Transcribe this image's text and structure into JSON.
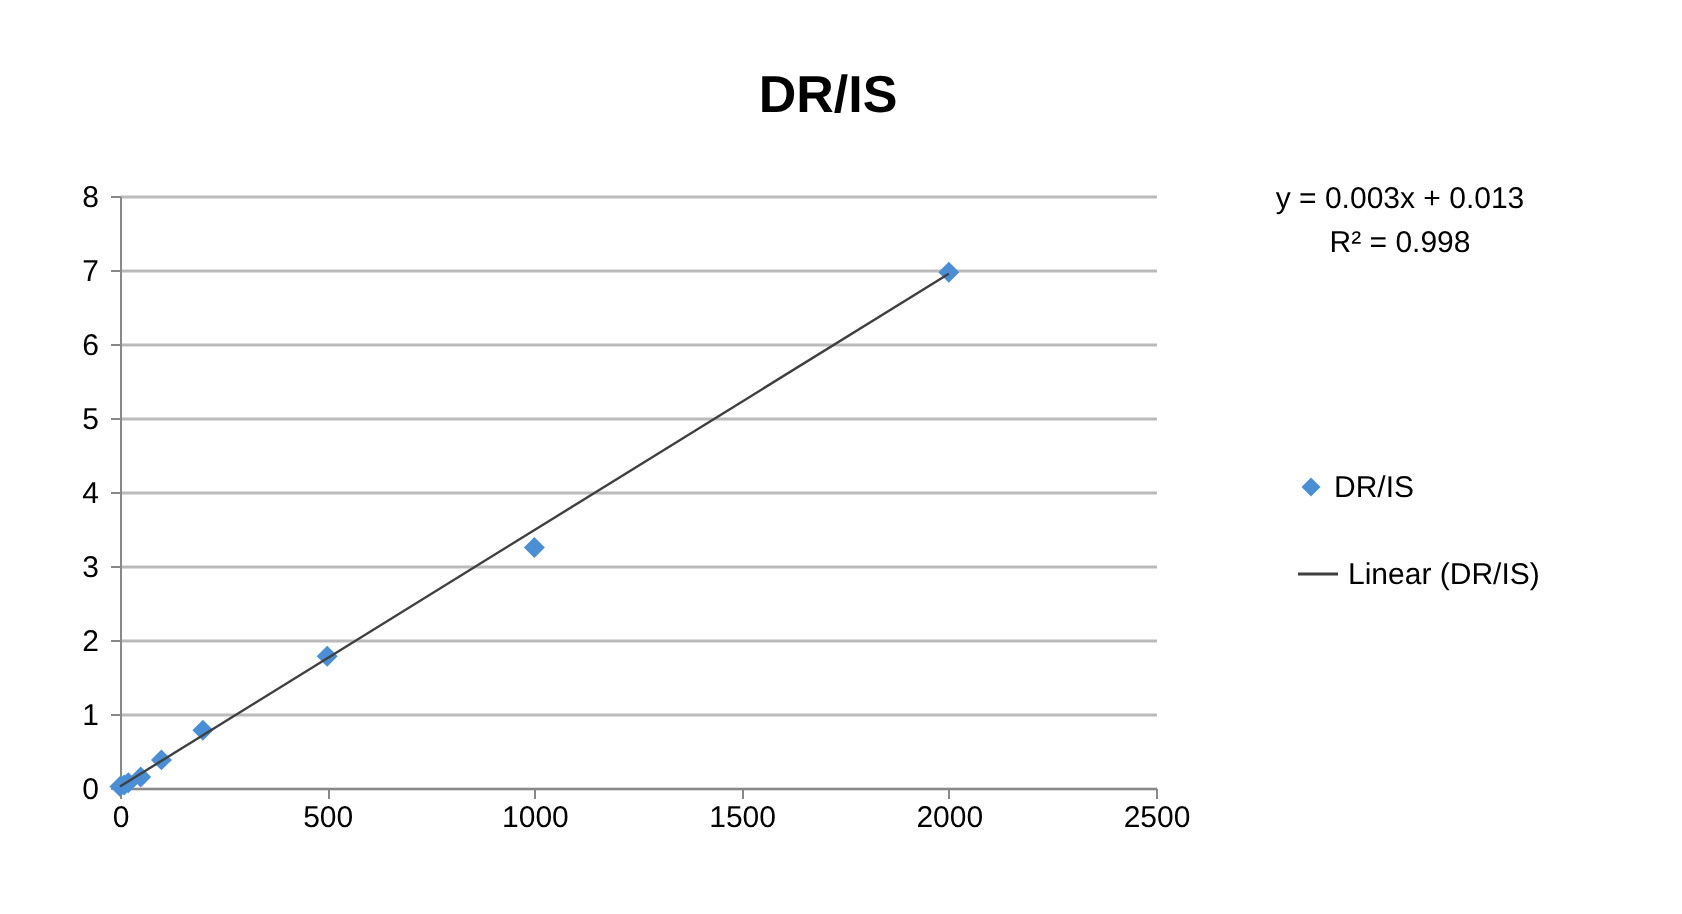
{
  "chart_data": {
    "type": "scatter",
    "title": "DR/IS",
    "x": [
      0,
      10,
      20,
      50,
      100,
      200,
      500,
      1000,
      2000
    ],
    "series": [
      {
        "name": "DR/IS",
        "color": "#4a8fd6",
        "marker": "diamond",
        "values": [
          0.02,
          0.04,
          0.07,
          0.15,
          0.38,
          0.78,
          1.78,
          3.25,
          6.97
        ]
      },
      {
        "name": "Linear (DR/IS)",
        "type": "line",
        "line_style": "solid",
        "color": "#404040",
        "x": [
          0,
          2000
        ],
        "values": [
          0.02,
          6.95
        ]
      }
    ],
    "xlim": [
      0,
      2500
    ],
    "xticks": [
      0,
      500,
      1000,
      1500,
      2000,
      2500
    ],
    "ylim": [
      0,
      8
    ],
    "yticks": [
      0,
      1,
      2,
      3,
      4,
      5,
      6,
      7,
      8
    ],
    "grid": "y",
    "legend": "right",
    "annotations": [
      "y = 0.003x + 0.013",
      "R² = 0.998"
    ]
  }
}
